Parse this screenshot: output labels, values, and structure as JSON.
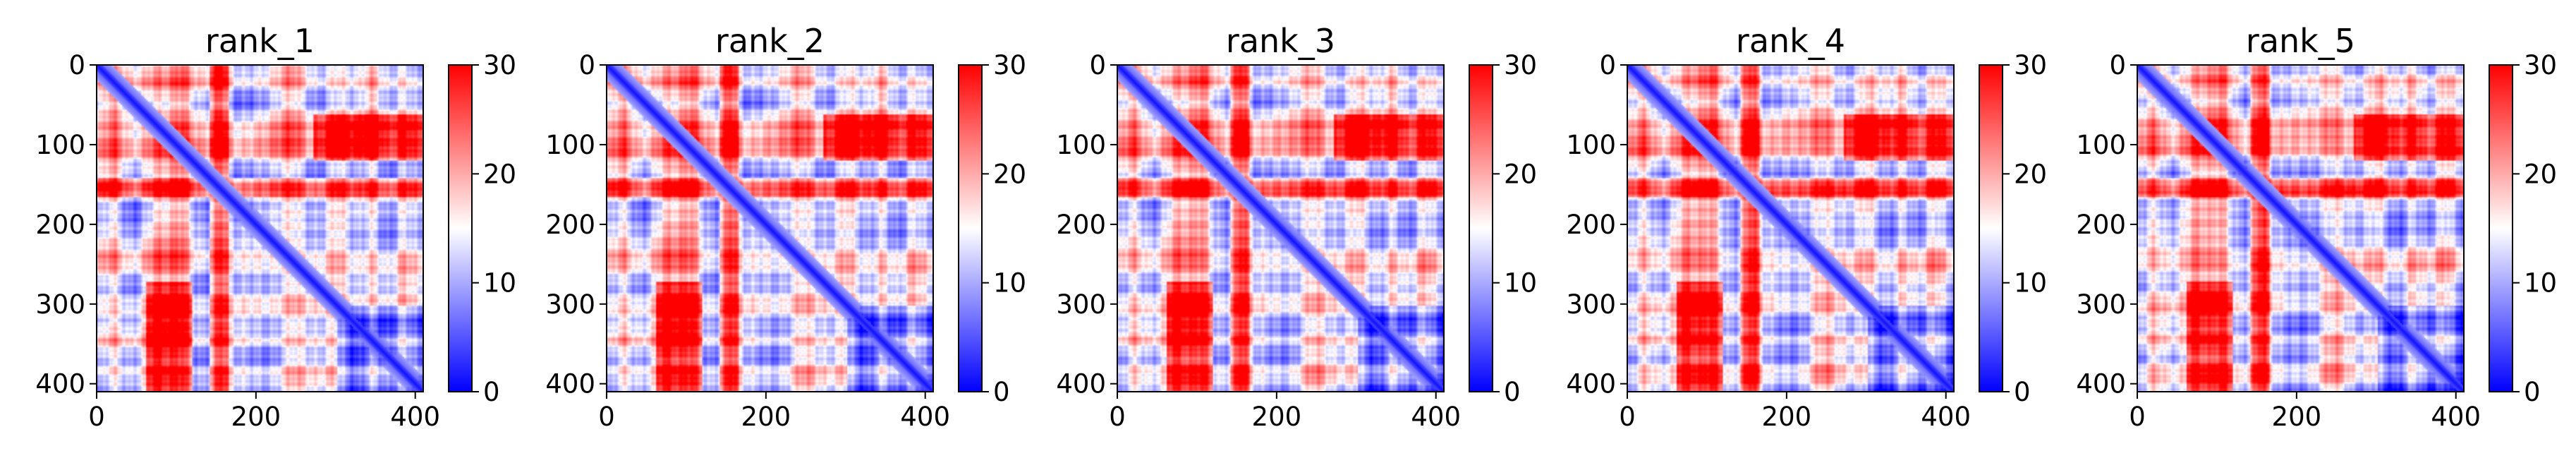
{
  "chart_data": [
    {
      "type": "heatmap",
      "title": "rank_1",
      "xlim": [
        0,
        410
      ],
      "ylim": [
        410,
        0
      ],
      "x_ticks": [
        0,
        200,
        400
      ],
      "y_ticks": [
        0,
        100,
        200,
        300,
        400
      ],
      "colorbar": {
        "range": [
          0,
          30
        ],
        "ticks": [
          0,
          10,
          20,
          30
        ],
        "colormap": "bwr"
      }
    },
    {
      "type": "heatmap",
      "title": "rank_2",
      "xlim": [
        0,
        410
      ],
      "ylim": [
        410,
        0
      ],
      "x_ticks": [
        0,
        200,
        400
      ],
      "y_ticks": [
        0,
        100,
        200,
        300,
        400
      ],
      "colorbar": {
        "range": [
          0,
          30
        ],
        "ticks": [
          0,
          10,
          20,
          30
        ],
        "colormap": "bwr"
      }
    },
    {
      "type": "heatmap",
      "title": "rank_3",
      "xlim": [
        0,
        410
      ],
      "ylim": [
        410,
        0
      ],
      "x_ticks": [
        0,
        200,
        400
      ],
      "y_ticks": [
        0,
        100,
        200,
        300,
        400
      ],
      "colorbar": {
        "range": [
          0,
          30
        ],
        "ticks": [
          0,
          10,
          20,
          30
        ],
        "colormap": "bwr"
      }
    },
    {
      "type": "heatmap",
      "title": "rank_4",
      "xlim": [
        0,
        410
      ],
      "ylim": [
        410,
        0
      ],
      "x_ticks": [
        0,
        200,
        400
      ],
      "y_ticks": [
        0,
        100,
        200,
        300,
        400
      ],
      "colorbar": {
        "range": [
          0,
          30
        ],
        "ticks": [
          0,
          10,
          20,
          30
        ],
        "colormap": "bwr"
      }
    },
    {
      "type": "heatmap",
      "title": "rank_5",
      "xlim": [
        0,
        410
      ],
      "ylim": [
        410,
        0
      ],
      "x_ticks": [
        0,
        200,
        400
      ],
      "y_ticks": [
        0,
        100,
        200,
        300,
        400
      ],
      "colorbar": {
        "range": [
          0,
          30
        ],
        "ticks": [
          0,
          10,
          20,
          30
        ],
        "colormap": "bwr"
      }
    }
  ],
  "colors": {
    "low": "#0000ff",
    "mid": "#ffffff",
    "high": "#ff0000"
  }
}
